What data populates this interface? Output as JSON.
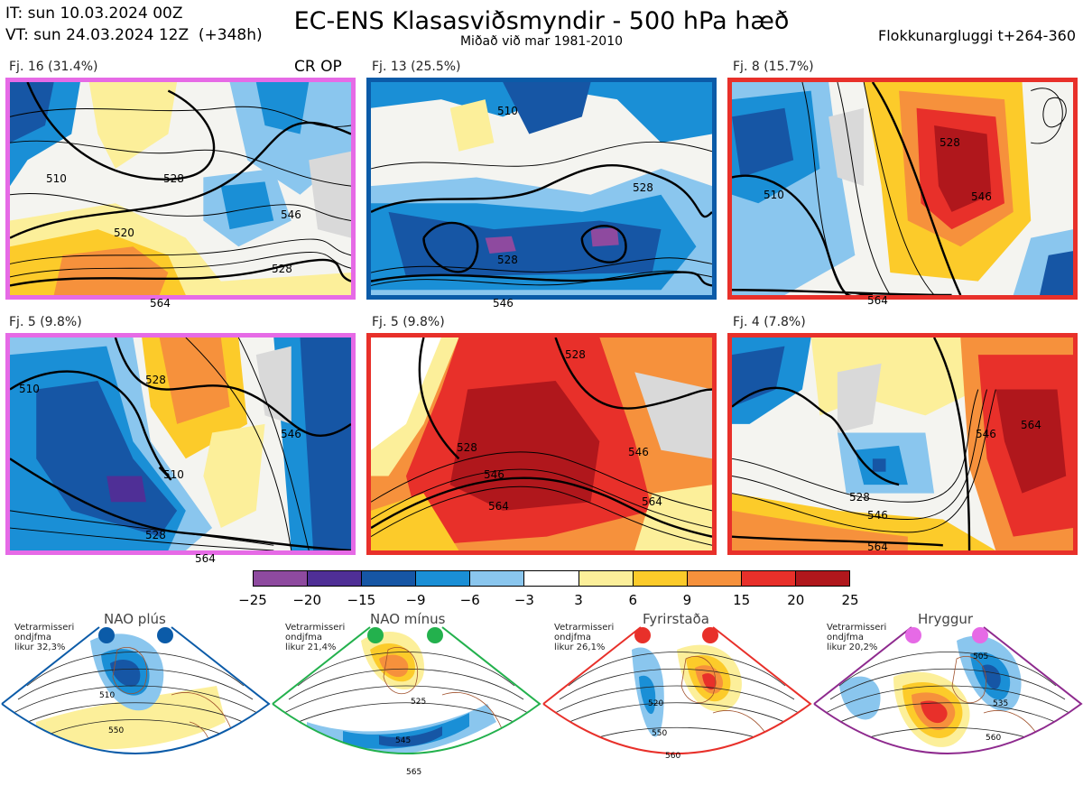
{
  "header": {
    "init_line": "IT: sun 10.03.2024 00Z",
    "valid_line": "VT: sun 24.03.2024 12Z  (+348h)",
    "title": "EC-ENS Klasasviðsmyndir - 500 hPa hæð",
    "subtitle": "Miðað við mar 1981-2010",
    "window": "Flokkunargluggi t+264-360"
  },
  "panels": [
    {
      "label": "Fj. 16 (31.4%)",
      "tag": "CR OP",
      "frame_color": "#e66ae6",
      "contours": [
        "510",
        "528",
        "520",
        "528",
        "546",
        "564"
      ]
    },
    {
      "label": "Fj. 13 (25.5%)",
      "frame_color": "#0b5ba8",
      "contours": [
        "510",
        "528",
        "528",
        "546"
      ]
    },
    {
      "label": "Fj. 8 (15.7%)",
      "frame_color": "#e8302a",
      "contours": [
        "510",
        "528",
        "546",
        "564"
      ]
    },
    {
      "label": "Fj. 5 (9.8%)",
      "frame_color": "#e66ae6",
      "contours": [
        "510",
        "528",
        "510",
        "528",
        "546",
        "564"
      ]
    },
    {
      "label": "Fj. 5 (9.8%)",
      "frame_color": "#e8302a",
      "contours": [
        "528",
        "528",
        "546",
        "564",
        "546",
        "564"
      ]
    },
    {
      "label": "Fj. 4 (7.8%)",
      "frame_color": "#e8302a",
      "contours": [
        "546",
        "564",
        "528",
        "546",
        "564"
      ]
    }
  ],
  "colorbar": {
    "colors": [
      "#8e4a9f",
      "#4f2f96",
      "#1656a5",
      "#1a8fd6",
      "#8ac6ee",
      "#ffffff",
      "#fcef9a",
      "#fccb2a",
      "#f6913c",
      "#e8302a",
      "#b0171c"
    ],
    "ticks": [
      "-25",
      "-20",
      "-15",
      "-9",
      "-6",
      "-3",
      "3",
      "6",
      "9",
      "15",
      "20",
      "25"
    ]
  },
  "regimes": [
    {
      "name": "NAO plús",
      "likelihood": "Vetrarmisseri\nondjfma\nlikur 32,3%",
      "dot_color": "#0b5ba8",
      "frame_color": "#0b5ba8",
      "contours": [
        "510",
        "550"
      ]
    },
    {
      "name": "NAO mínus",
      "likelihood": "Vetrarmisseri\nondjfma\nlikur 21,4%",
      "dot_color": "#23b14d",
      "frame_color": "#23b14d",
      "contours": [
        "525",
        "545",
        "565"
      ]
    },
    {
      "name": "Fyrirstaða",
      "likelihood": "Vetrarmisseri\nondjfma\nlikur 26,1%",
      "dot_color": "#e8302a",
      "frame_color": "#e8302a",
      "contours": [
        "520",
        "550",
        "560"
      ]
    },
    {
      "name": "Hryggur",
      "likelihood": "Vetrarmisseri\nondjfma\nlikur 20,2%",
      "dot_color": "#e66ae6",
      "frame_color": "#8e2a8e",
      "contours": [
        "505",
        "535",
        "560"
      ]
    }
  ]
}
